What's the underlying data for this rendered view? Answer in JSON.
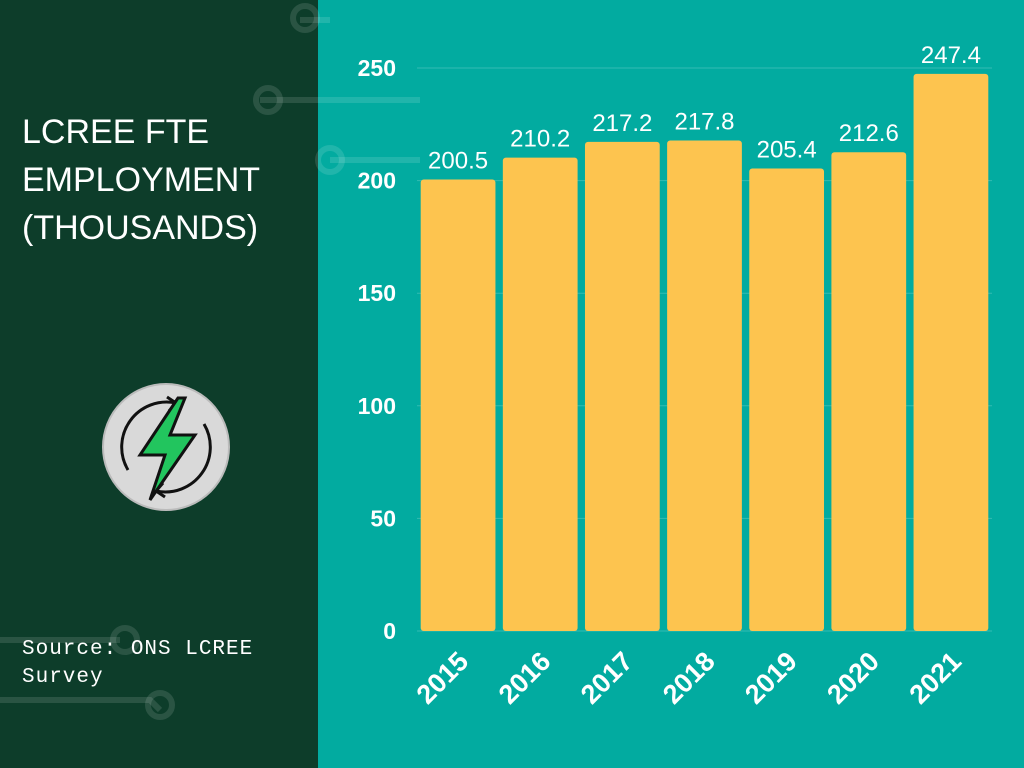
{
  "chart_data": {
    "type": "bar",
    "title": "LCREE FTE EMPLOYMENT (THOUSANDS)",
    "source": "Source: ONS LCREE Survey",
    "categories": [
      "2015",
      "2016",
      "2017",
      "2018",
      "2019",
      "2020",
      "2021"
    ],
    "values": [
      200.5,
      210.2,
      217.2,
      217.8,
      205.4,
      212.6,
      247.4
    ],
    "color": "#fdc44f",
    "ylim": [
      0,
      250
    ],
    "yticks": [
      0,
      50,
      100,
      150,
      200,
      250
    ],
    "grid": true
  }
}
